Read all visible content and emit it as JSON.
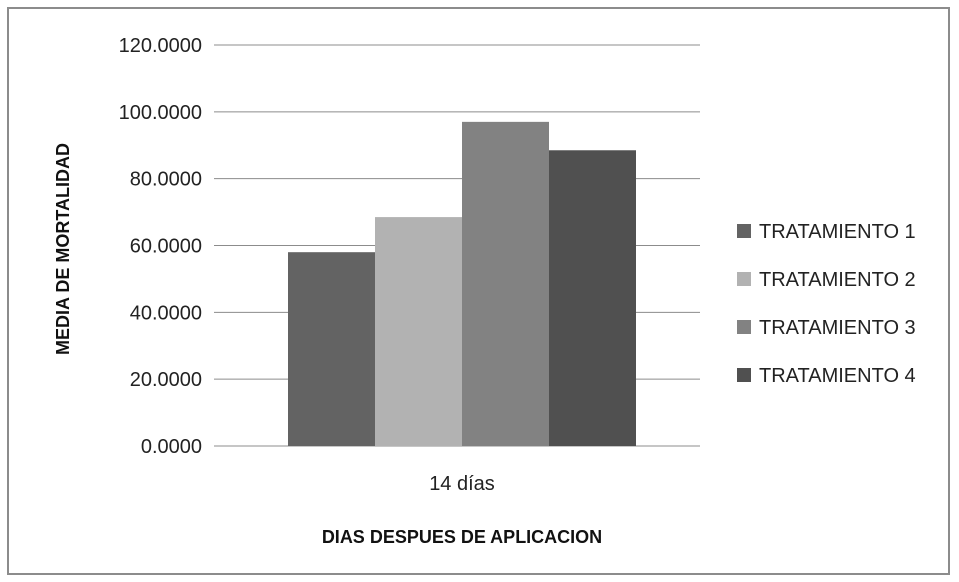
{
  "chart_data": {
    "type": "bar",
    "categories": [
      "14 días"
    ],
    "series": [
      {
        "name": "TRATAMIENTO 1",
        "values": [
          58.0
        ],
        "color": "#636363"
      },
      {
        "name": "TRATAMIENTO 2",
        "values": [
          68.5
        ],
        "color": "#b2b2b2"
      },
      {
        "name": "TRATAMIENTO 3",
        "values": [
          97.0
        ],
        "color": "#828282"
      },
      {
        "name": "TRATAMIENTO 4",
        "values": [
          88.5
        ],
        "color": "#505050"
      }
    ],
    "title": "",
    "xlabel": "DIAS DESPUES DE APLICACION",
    "ylabel": "MEDIA DE MORTALIDAD",
    "ylim": [
      0,
      120
    ],
    "yticks": [
      0,
      20,
      40,
      60,
      80,
      100,
      120
    ],
    "ytick_labels": [
      "0.0000",
      "20.0000",
      "40.0000",
      "60.0000",
      "80.0000",
      "100.0000",
      "120.0000"
    ],
    "grid": true,
    "legend": "right",
    "gridline_color": "#8c8c8c"
  }
}
